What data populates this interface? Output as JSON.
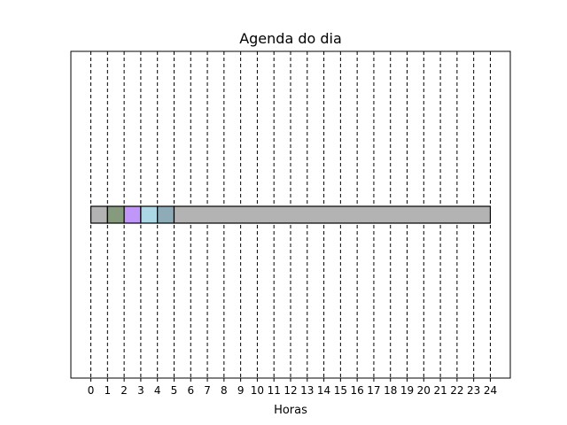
{
  "chart_data": {
    "type": "bar",
    "orientation": "horizontal-timeline",
    "title": "Agenda do dia",
    "xlabel": "Horas",
    "ylabel": "",
    "xlim": [
      -1.2,
      25.2
    ],
    "x_ticks": [
      0,
      1,
      2,
      3,
      4,
      5,
      6,
      7,
      8,
      9,
      10,
      11,
      12,
      13,
      14,
      15,
      16,
      17,
      18,
      19,
      20,
      21,
      22,
      23,
      24
    ],
    "x_tick_labels": [
      "0",
      "1",
      "2",
      "3",
      "4",
      "5",
      "6",
      "7",
      "8",
      "9",
      "10",
      "11",
      "12",
      "13",
      "14",
      "15",
      "16",
      "17",
      "18",
      "19",
      "20",
      "21",
      "22",
      "23",
      "24"
    ],
    "y_ticks_visible": false,
    "grid": "vertical dashed lines at each hour",
    "segments": [
      {
        "start": 0,
        "end": 1,
        "color": "#b3b3b3"
      },
      {
        "start": 1,
        "end": 2,
        "color": "#869a7e"
      },
      {
        "start": 2,
        "end": 3,
        "color": "#c097f8"
      },
      {
        "start": 3,
        "end": 4,
        "color": "#acd8e6"
      },
      {
        "start": 4,
        "end": 5,
        "color": "#8eacb7"
      },
      {
        "start": 5,
        "end": 24,
        "color": "#b3b3b3"
      }
    ]
  }
}
